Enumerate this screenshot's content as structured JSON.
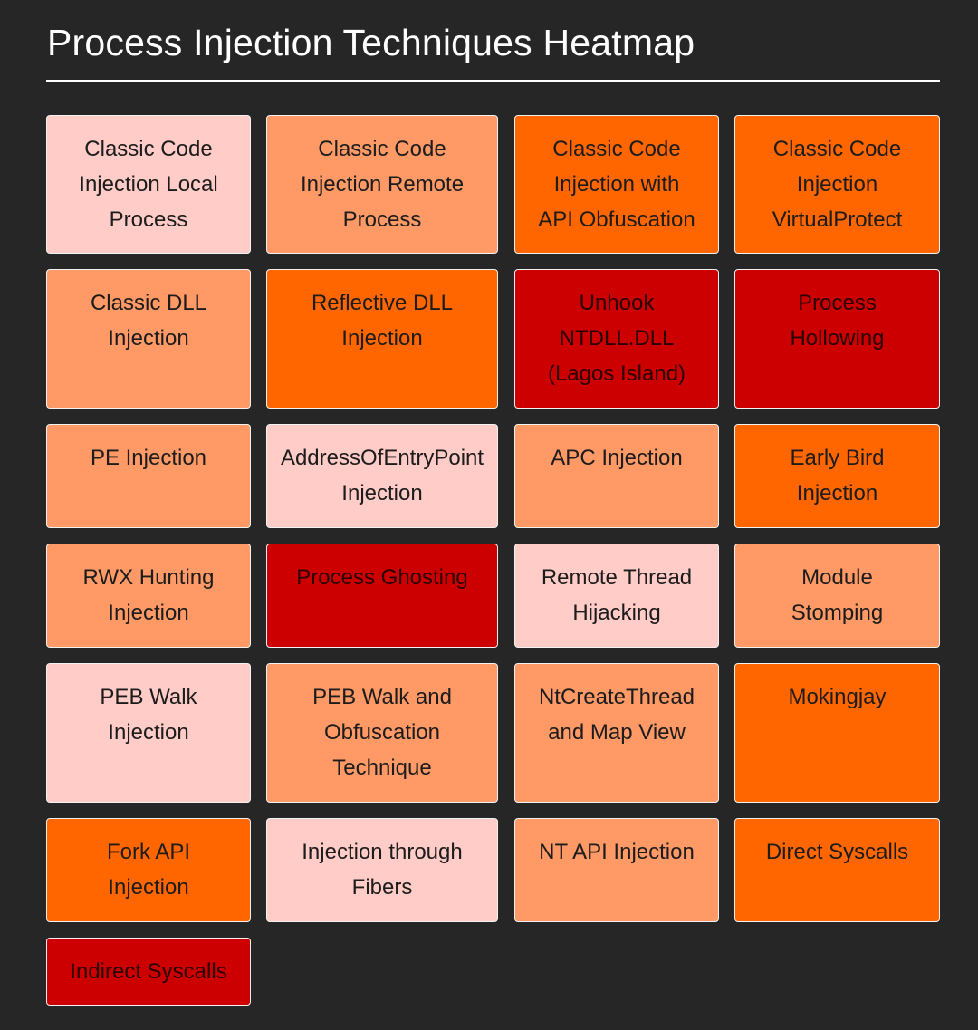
{
  "title": "Process Injection Techniques Heatmap",
  "colors": {
    "background": "#262626",
    "low": "#ffccc8",
    "medium": "#ff9966",
    "high": "#ff6600",
    "critical": "#cc0000"
  },
  "techniques": [
    {
      "label": "Classic Code\nInjection Local\nProcess",
      "level": "low"
    },
    {
      "label": "Classic Code\nInjection Remote\nProcess",
      "level": "medium"
    },
    {
      "label": "Classic Code\nInjection with\nAPI Obfuscation",
      "level": "high"
    },
    {
      "label": "Classic Code\nInjection\nVirtualProtect",
      "level": "high"
    },
    {
      "label": "Classic DLL\nInjection",
      "level": "medium"
    },
    {
      "label": "Reflective DLL\nInjection",
      "level": "high"
    },
    {
      "label": "Unhook\nNTDLL.DLL\n(Lagos Island)",
      "level": "critical"
    },
    {
      "label": "Process\nHollowing",
      "level": "critical"
    },
    {
      "label": "PE Injection",
      "level": "medium"
    },
    {
      "label": "AddressOfEntryPoint\nInjection",
      "level": "low"
    },
    {
      "label": "APC Injection",
      "level": "medium"
    },
    {
      "label": "Early Bird\nInjection",
      "level": "high"
    },
    {
      "label": "RWX Hunting\nInjection",
      "level": "medium"
    },
    {
      "label": "Process Ghosting",
      "level": "critical"
    },
    {
      "label": "Remote Thread\nHijacking",
      "level": "low"
    },
    {
      "label": "Module\nStomping",
      "level": "medium"
    },
    {
      "label": "PEB Walk\nInjection",
      "level": "low"
    },
    {
      "label": "PEB Walk and\nObfuscation\nTechnique",
      "level": "medium"
    },
    {
      "label": "NtCreateThread\nand Map View",
      "level": "medium"
    },
    {
      "label": "Mokingjay",
      "level": "high"
    },
    {
      "label": "Fork API\nInjection",
      "level": "high"
    },
    {
      "label": "Injection through\nFibers",
      "level": "low"
    },
    {
      "label": "NT API Injection",
      "level": "medium"
    },
    {
      "label": "Direct Syscalls",
      "level": "high"
    },
    {
      "label": "Indirect Syscalls",
      "level": "critical"
    }
  ]
}
